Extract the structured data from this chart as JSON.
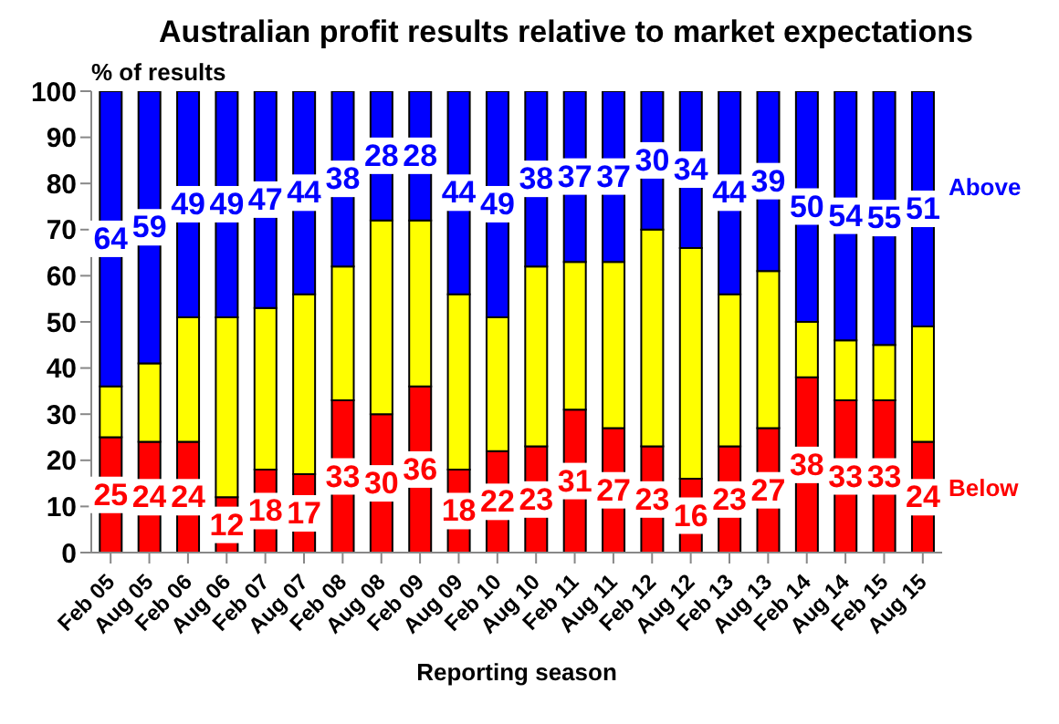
{
  "chart_data": {
    "type": "bar",
    "title": "Australian profit results relative to market expectations",
    "ylabel": "% of results",
    "xlabel": "Reporting season",
    "categories": [
      "Feb 05",
      "Aug 05",
      "Feb 06",
      "Aug 06",
      "Feb 07",
      "Aug 07",
      "Feb 08",
      "Aug 08",
      "Feb 09",
      "Aug 09",
      "Feb 10",
      "Aug 10",
      "Feb 11",
      "Aug 11",
      "Feb 12",
      "Aug 12",
      "Feb 13",
      "Aug 13",
      "Feb 14",
      "Aug 14",
      "Feb 15",
      "Aug 15"
    ],
    "stacked": true,
    "ylim": [
      0,
      100
    ],
    "yticks": [
      0,
      10,
      20,
      30,
      40,
      50,
      60,
      70,
      80,
      90,
      100
    ],
    "data_labels": true,
    "series": [
      {
        "name": "Below",
        "color": "#ff0000",
        "values": [
          25,
          24,
          24,
          12,
          18,
          17,
          33,
          30,
          36,
          18,
          22,
          23,
          31,
          27,
          23,
          16,
          23,
          27,
          38,
          33,
          33,
          24
        ]
      },
      {
        "color": "#ffff00",
        "values": [
          11,
          17,
          27,
          39,
          35,
          39,
          29,
          42,
          36,
          38,
          29,
          39,
          32,
          36,
          47,
          50,
          33,
          34,
          12,
          13,
          12,
          25
        ],
        "value_labels": [
          null,
          null,
          null,
          null,
          null,
          null,
          null,
          null,
          null,
          null,
          null,
          null,
          null,
          null,
          null,
          null,
          null,
          null,
          null,
          null,
          null,
          null
        ]
      },
      {
        "name": "Above",
        "color": "#0000ff",
        "values": [
          64,
          59,
          49,
          49,
          47,
          44,
          38,
          28,
          28,
          44,
          49,
          38,
          37,
          37,
          30,
          34,
          44,
          39,
          50,
          54,
          55,
          51
        ]
      }
    ]
  }
}
